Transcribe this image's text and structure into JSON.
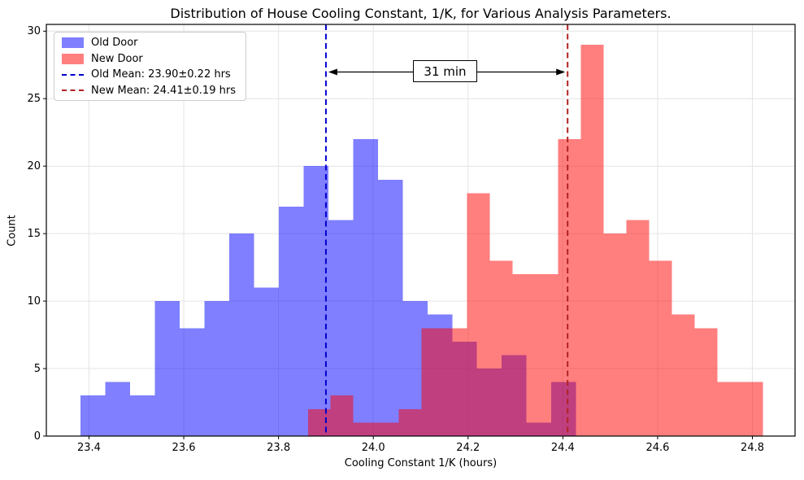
{
  "title": "Distribution of House Cooling Constant, 1/K, for Various Analysis Parameters.",
  "axes": {
    "xlabel": "Cooling Constant 1/K (hours)",
    "ylabel": "Count"
  },
  "annotation": {
    "label": "31 min"
  },
  "legend": {
    "position": "upper left",
    "items": [
      {
        "label": "Old Door",
        "swatch": "patch",
        "color": "#0000ff",
        "alpha": 0.5
      },
      {
        "label": "New Door",
        "swatch": "patch",
        "color": "#ff0000",
        "alpha": 0.5
      },
      {
        "label": "Old Mean: 23.90±0.22 hrs",
        "swatch": "dashed-line",
        "color": "#0000cd",
        "alpha": 1
      },
      {
        "label": "New Mean: 24.41±0.19 hrs",
        "swatch": "dashed-line",
        "color": "#b22222",
        "alpha": 1
      }
    ]
  },
  "chart_data": {
    "type": "bar",
    "subtype": "overlapping-histograms",
    "title": "Distribution of House Cooling Constant, 1/K, for Various Analysis Parameters.",
    "xlabel": "Cooling Constant 1/K (hours)",
    "ylabel": "Count",
    "grid": true,
    "legend_position": "upper left",
    "xlim": [
      23.31,
      24.89
    ],
    "ylim": [
      0,
      30.5
    ],
    "xticks": [
      23.4,
      23.6,
      23.8,
      24.0,
      24.2,
      24.4,
      24.6,
      24.8
    ],
    "yticks": [
      0,
      5,
      10,
      15,
      20,
      25,
      30
    ],
    "series": [
      {
        "name": "Old Door",
        "color": "#0000ff",
        "alpha": 0.5,
        "bin_start": 23.382,
        "bin_width": 0.0523,
        "counts": [
          3,
          4,
          3,
          10,
          8,
          10,
          15,
          11,
          17,
          20,
          16,
          22,
          19,
          10,
          9,
          7,
          5,
          6,
          1,
          4
        ]
      },
      {
        "name": "New Door",
        "color": "#ff0000",
        "alpha": 0.5,
        "bin_start": 23.862,
        "bin_width": 0.048,
        "counts": [
          2,
          3,
          1,
          1,
          2,
          8,
          8,
          18,
          13,
          12,
          12,
          22,
          29,
          15,
          16,
          13,
          9,
          8,
          4,
          4
        ]
      }
    ],
    "mean_lines": [
      {
        "name": "Old Mean",
        "value": 23.9,
        "uncertainty": 0.22,
        "units": "hrs",
        "color": "#0000cd",
        "style": "dashed"
      },
      {
        "name": "New Mean",
        "value": 24.41,
        "uncertainty": 0.19,
        "units": "hrs",
        "color": "#b22222",
        "style": "dashed"
      }
    ],
    "gap_annotation": {
      "label": "31 min",
      "from": 23.9,
      "to": 24.41
    }
  },
  "colors": {
    "background": "#ffffff",
    "grid": "#e4e4e4",
    "spine": "#000000",
    "text": "#000000",
    "overlap_rendered": "#bf4080",
    "old_bar_rendered": "#8080ff",
    "new_bar_rendered": "#ff8080"
  }
}
